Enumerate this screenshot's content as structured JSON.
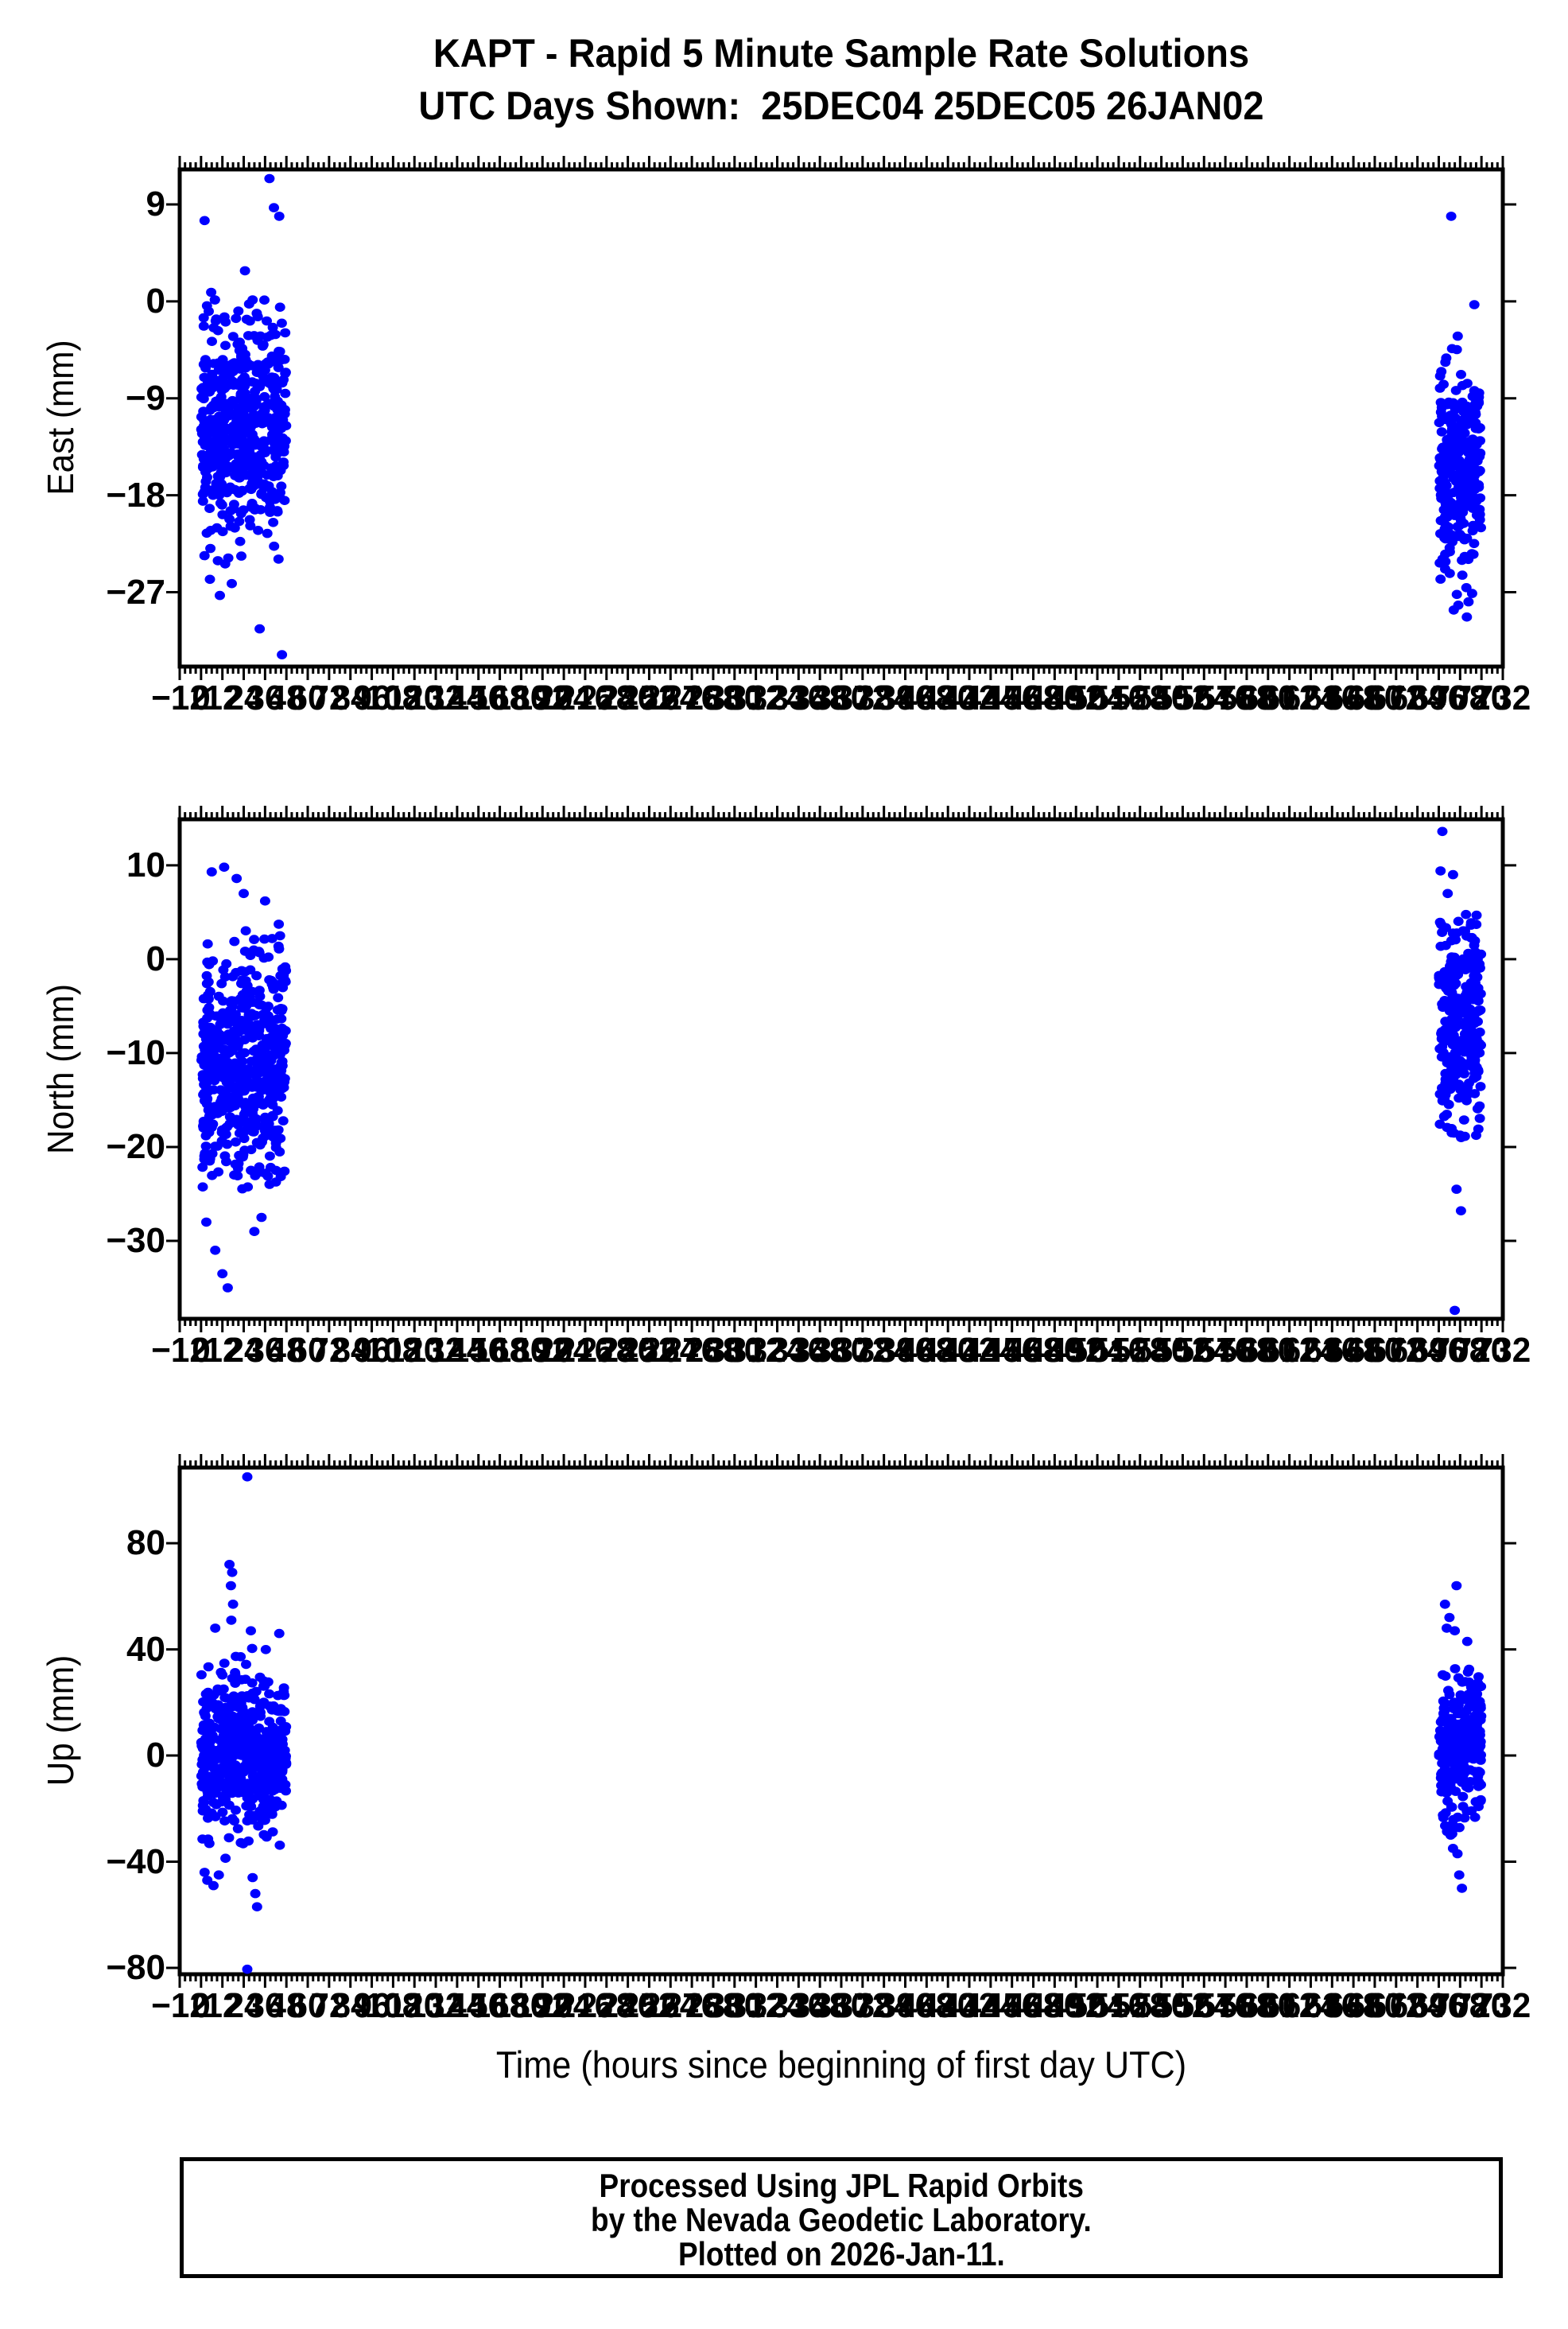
{
  "title": {
    "line1": "KAPT - Rapid 5 Minute Sample Rate Solutions",
    "line2": "UTC Days Shown:  25DEC04 25DEC05 26JAN02"
  },
  "footer": {
    "line1": "Processed Using JPL Rapid Orbits",
    "line2": "by the Nevada Geodetic Laboratory.",
    "line3": "Plotted on 2026-Jan-11."
  },
  "dot_color": "#0000ff",
  "frame_color": "#000000",
  "chart_data": {
    "type": "scatter",
    "title": "KAPT - Rapid 5 Minute Sample Rate Solutions",
    "subtitle": "UTC Days Shown:  25DEC04 25DEC05 26JAN02",
    "x_axis": {
      "label": "Time (hours since beginning of first day UTC)",
      "min": -12,
      "max": 732,
      "annot_step": 12,
      "minor_step": 3
    },
    "panels": [
      {
        "id": "east",
        "ylabel": "East (mm)",
        "yticks": [
          9,
          0,
          -9,
          -18,
          -27
        ],
        "ylim": [
          -33.9,
          12.25
        ],
        "clusters": [
          {
            "hours": [
              0.15,
              47.85
            ],
            "count": 545,
            "mean": -11.5,
            "sd": 5.3,
            "clamp": [
              -24.5,
              6.8
            ]
          },
          {
            "hours": [
              696.15,
              719.85
            ],
            "count": 285,
            "mean": -15.5,
            "sd": 4.8,
            "clamp": [
              -28.7,
              -1.0
            ]
          }
        ],
        "outliers": [
          [
            38.5,
            11.4
          ],
          [
            41,
            8.7
          ],
          [
            2,
            7.5
          ],
          [
            44,
            7.9
          ],
          [
            17.3,
            -26.2
          ],
          [
            10.6,
            -27.3
          ],
          [
            5,
            -25.8
          ],
          [
            33,
            -30.4
          ],
          [
            45.5,
            -32.8
          ],
          [
            703,
            7.9
          ],
          [
            716,
            -0.3
          ],
          [
            707,
            -28.2
          ],
          [
            711.8,
            -29.3
          ]
        ]
      },
      {
        "id": "north",
        "ylabel": "North (mm)",
        "yticks": [
          10,
          0,
          -10,
          -20,
          -30
        ],
        "ylim": [
          -38.3,
          14.9
        ],
        "clusters": [
          {
            "hours": [
              0.15,
              47.85
            ],
            "count": 545,
            "mean": -11.0,
            "sd": 6.2,
            "clamp": [
              -25.0,
              4.0
            ]
          },
          {
            "hours": [
              696.15,
              719.85
            ],
            "count": 285,
            "mean": -6.5,
            "sd": 5.5,
            "clamp": [
              -22.5,
              5.0
            ]
          }
        ],
        "outliers": [
          [
            6,
            9.3
          ],
          [
            13,
            9.8
          ],
          [
            20,
            8.6
          ],
          [
            24,
            7.0
          ],
          [
            36,
            6.2
          ],
          [
            3,
            -28.0
          ],
          [
            8,
            -31.0
          ],
          [
            12,
            -33.5
          ],
          [
            15,
            -35.0
          ],
          [
            30,
            -29.0
          ],
          [
            34,
            -27.5
          ],
          [
            698,
            13.6
          ],
          [
            697,
            9.4
          ],
          [
            704,
            9.0
          ],
          [
            701,
            7.0
          ],
          [
            706,
            -24.5
          ],
          [
            708.5,
            -26.8
          ],
          [
            705,
            -37.4
          ]
        ]
      },
      {
        "id": "up",
        "ylabel": "Up (mm)",
        "yticks": [
          80,
          40,
          0,
          -40,
          -80
        ],
        "ylim": [
          -82.4,
          108.5
        ],
        "clusters": [
          {
            "hours": [
              0.15,
              47.85
            ],
            "count": 545,
            "mean": 0.0,
            "sd": 14.0,
            "clamp": [
              -40.0,
              44.0
            ]
          },
          {
            "hours": [
              696.15,
              719.85
            ],
            "count": 285,
            "mean": 4.0,
            "sd": 13.0,
            "clamp": [
              -31.0,
              34.0
            ]
          }
        ],
        "outliers": [
          [
            26,
            105
          ],
          [
            16,
            72
          ],
          [
            17.5,
            69
          ],
          [
            16.8,
            64
          ],
          [
            18,
            57
          ],
          [
            17,
            51
          ],
          [
            8,
            48
          ],
          [
            28,
            47
          ],
          [
            44,
            46
          ],
          [
            2,
            -44
          ],
          [
            3.5,
            -47
          ],
          [
            7,
            -49
          ],
          [
            10,
            -45
          ],
          [
            29,
            -46
          ],
          [
            30.5,
            -52
          ],
          [
            31.5,
            -57
          ],
          [
            26,
            -80.5
          ],
          [
            706,
            64
          ],
          [
            699.5,
            57
          ],
          [
            702,
            52
          ],
          [
            700.5,
            48
          ],
          [
            705,
            47
          ],
          [
            712,
            43
          ],
          [
            704,
            -35
          ],
          [
            706.5,
            -37
          ],
          [
            707.5,
            -45
          ],
          [
            709,
            -50
          ]
        ]
      }
    ]
  }
}
